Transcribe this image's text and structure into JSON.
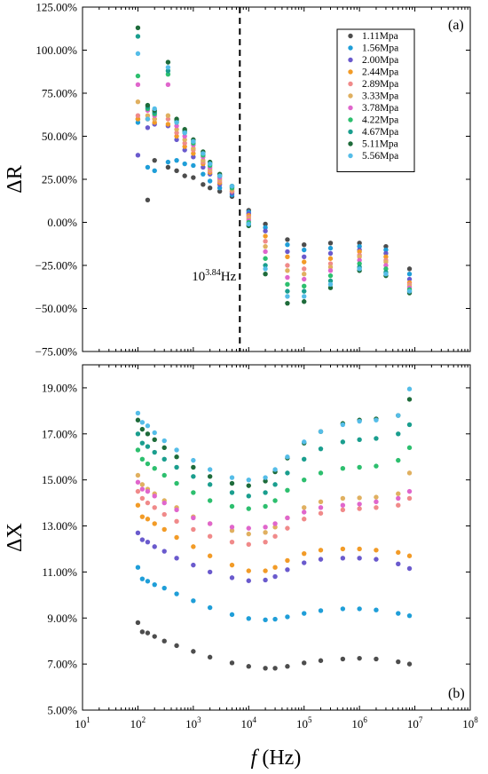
{
  "chart_data": [
    {
      "type": "scatter",
      "panel_label": "(a)",
      "ylabel": "ΔR",
      "xscale": "log",
      "xlim": [
        10,
        100000000
      ],
      "ylim": [
        -75,
        125
      ],
      "yticks": [
        "−75.00%",
        "−50.00%",
        "−25.00%",
        "0.00%",
        "25.00%",
        "50.00%",
        "75.00%",
        "100.00%",
        "125.00%"
      ],
      "ytick_values": [
        -75,
        -50,
        -25,
        0,
        25,
        50,
        75,
        100,
        125
      ],
      "vline_x_log10": 3.84,
      "annotation": {
        "base": "10",
        "exp": "3.84",
        "unit": "Hz"
      },
      "legend_position": "top-right",
      "series": [
        {
          "name": "1.11Mpa",
          "color": "#4d4d4d",
          "x": [
            100,
            150,
            200,
            350,
            500,
            700,
            1000,
            1500,
            2000,
            3000,
            5000,
            10000,
            20000,
            50000,
            100000,
            300000,
            1000000,
            3000000,
            8000000
          ],
          "y": [
            60,
            13,
            36,
            32,
            30,
            27,
            26,
            22,
            20,
            18,
            15,
            7,
            -1,
            -10,
            -13,
            -12,
            -12,
            -14,
            -27
          ]
        },
        {
          "name": "1.56Mpa",
          "color": "#1f9ed8",
          "x": [
            100,
            150,
            200,
            350,
            500,
            700,
            1000,
            1500,
            2000,
            3000,
            5000,
            10000,
            20000,
            50000,
            100000,
            300000,
            1000000,
            3000000,
            8000000
          ],
          "y": [
            58,
            32,
            30,
            35,
            36,
            34,
            33,
            28,
            24,
            20,
            16,
            6,
            -3,
            -13,
            -16,
            -15,
            -14,
            -16,
            -30
          ]
        },
        {
          "name": "2.00Mpa",
          "color": "#6a5acd",
          "x": [
            100,
            150,
            200,
            350,
            500,
            700,
            1000,
            1500,
            2000,
            3000,
            5000,
            10000,
            20000,
            50000,
            100000,
            300000,
            1000000,
            3000000,
            8000000
          ],
          "y": [
            39,
            55,
            57,
            56,
            48,
            42,
            38,
            32,
            28,
            22,
            17,
            5,
            -5,
            -17,
            -20,
            -18,
            -16,
            -18,
            -33
          ]
        },
        {
          "name": "2.44Mpa",
          "color": "#f29b27",
          "x": [
            100,
            150,
            200,
            350,
            500,
            700,
            1000,
            1500,
            2000,
            3000,
            5000,
            10000,
            20000,
            50000,
            100000,
            300000,
            1000000,
            3000000,
            8000000
          ],
          "y": [
            60,
            60,
            58,
            57,
            50,
            44,
            40,
            34,
            29,
            23,
            18,
            4,
            -8,
            -20,
            -23,
            -21,
            -17,
            -20,
            -35
          ]
        },
        {
          "name": "2.89Mpa",
          "color": "#f08a8a",
          "x": [
            100,
            150,
            200,
            350,
            500,
            700,
            1000,
            1500,
            2000,
            3000,
            5000,
            10000,
            20000,
            50000,
            100000,
            300000,
            1000000,
            3000000,
            8000000
          ],
          "y": [
            62,
            60,
            60,
            60,
            52,
            46,
            42,
            35,
            30,
            24,
            18,
            3,
            -11,
            -25,
            -27,
            -24,
            -19,
            -22,
            -36
          ]
        },
        {
          "name": "3.33Mpa",
          "color": "#e0b060",
          "x": [
            100,
            150,
            200,
            350,
            500,
            700,
            1000,
            1500,
            2000,
            3000,
            5000,
            10000,
            20000,
            50000,
            100000,
            300000,
            1000000,
            3000000,
            8000000
          ],
          "y": [
            70,
            62,
            60,
            62,
            54,
            48,
            43,
            36,
            31,
            25,
            19,
            2,
            -14,
            -28,
            -30,
            -26,
            -20,
            -23,
            -37
          ]
        },
        {
          "name": "3.78Mpa",
          "color": "#e066cc",
          "x": [
            100,
            150,
            200,
            350,
            500,
            700,
            1000,
            1500,
            2000,
            3000,
            5000,
            10000,
            20000,
            50000,
            100000,
            300000,
            1000000,
            3000000,
            8000000
          ],
          "y": [
            80,
            65,
            62,
            80,
            56,
            50,
            45,
            38,
            32,
            26,
            20,
            1,
            -17,
            -32,
            -33,
            -28,
            -22,
            -25,
            -38
          ]
        },
        {
          "name": "4.22Mpa",
          "color": "#2dbf6e",
          "x": [
            100,
            150,
            200,
            350,
            500,
            700,
            1000,
            1500,
            2000,
            3000,
            5000,
            10000,
            20000,
            50000,
            100000,
            300000,
            1000000,
            3000000,
            8000000
          ],
          "y": [
            85,
            66,
            63,
            86,
            58,
            52,
            46,
            39,
            33,
            27,
            20,
            0,
            -21,
            -36,
            -37,
            -31,
            -24,
            -27,
            -39
          ]
        },
        {
          "name": "4.67Mpa",
          "color": "#1a9e8e",
          "x": [
            100,
            150,
            200,
            350,
            500,
            700,
            1000,
            1500,
            2000,
            3000,
            5000,
            10000,
            20000,
            50000,
            100000,
            300000,
            1000000,
            3000000,
            8000000
          ],
          "y": [
            108,
            67,
            64,
            88,
            59,
            53,
            47,
            40,
            34,
            27,
            21,
            -1,
            -25,
            -40,
            -40,
            -34,
            -26,
            -29,
            -40
          ]
        },
        {
          "name": "5.11Mpa",
          "color": "#1e6b3a",
          "x": [
            100,
            150,
            200,
            350,
            500,
            700,
            1000,
            1500,
            2000,
            3000,
            5000,
            10000,
            20000,
            50000,
            100000,
            300000,
            1000000,
            3000000,
            8000000
          ],
          "y": [
            113,
            68,
            65,
            93,
            60,
            54,
            48,
            41,
            35,
            28,
            21,
            -2,
            -30,
            -47,
            -46,
            -38,
            -28,
            -31,
            -41
          ]
        },
        {
          "name": "5.56Mpa",
          "color": "#55bde8",
          "x": [
            100,
            150,
            200,
            350,
            500,
            700,
            1000,
            1500,
            2000,
            3000,
            5000,
            10000,
            20000,
            50000,
            100000,
            300000,
            1000000,
            3000000,
            8000000
          ],
          "y": [
            98,
            60,
            66,
            90,
            58,
            52,
            47,
            40,
            34,
            27,
            21,
            -1,
            -27,
            -43,
            -43,
            -36,
            -27,
            -30,
            -40
          ]
        }
      ]
    },
    {
      "type": "scatter",
      "panel_label": "(b)",
      "ylabel": "ΔX",
      "xlabel_italic": "f",
      "xlabel_unit": " (Hz)",
      "xscale": "log",
      "xlim": [
        10,
        100000000
      ],
      "xticks_exp": [
        "1",
        "2",
        "3",
        "4",
        "5",
        "6",
        "7",
        "8"
      ],
      "xtick_base": "10",
      "ylim": [
        5,
        20
      ],
      "yticks": [
        "5.00%",
        "7.00%",
        "9.00%",
        "11.00%",
        "13.00%",
        "15.00%",
        "17.00%",
        "19.00%"
      ],
      "ytick_values": [
        5,
        7,
        9,
        11,
        13,
        15,
        17,
        19
      ],
      "series": [
        {
          "name": "1.11Mpa",
          "color": "#4d4d4d",
          "x": [
            100,
            120,
            150,
            200,
            300,
            500,
            1000,
            2000,
            5000,
            10000,
            20000,
            30000,
            50000,
            100000,
            200000,
            500000,
            1000000,
            2000000,
            5000000,
            8000000
          ],
          "y": [
            8.8,
            8.4,
            8.35,
            8.2,
            8.0,
            7.8,
            7.55,
            7.3,
            7.05,
            6.9,
            6.82,
            6.82,
            6.9,
            7.05,
            7.15,
            7.22,
            7.25,
            7.22,
            7.1,
            7.0
          ]
        },
        {
          "name": "1.56Mpa",
          "color": "#1f9ed8",
          "x": [
            100,
            120,
            150,
            200,
            300,
            500,
            1000,
            2000,
            5000,
            10000,
            20000,
            30000,
            50000,
            100000,
            200000,
            500000,
            1000000,
            2000000,
            5000000,
            8000000
          ],
          "y": [
            11.2,
            10.7,
            10.6,
            10.45,
            10.3,
            10.05,
            9.75,
            9.45,
            9.15,
            8.98,
            8.92,
            8.95,
            9.05,
            9.2,
            9.32,
            9.4,
            9.4,
            9.35,
            9.2,
            9.1
          ]
        },
        {
          "name": "2.00Mpa",
          "color": "#6a5acd",
          "x": [
            100,
            120,
            150,
            200,
            300,
            500,
            1000,
            2000,
            5000,
            10000,
            20000,
            30000,
            50000,
            100000,
            200000,
            500000,
            1000000,
            2000000,
            5000000,
            8000000
          ],
          "y": [
            12.7,
            12.4,
            12.3,
            12.1,
            11.9,
            11.6,
            11.3,
            11.0,
            10.75,
            10.62,
            10.65,
            10.8,
            11.1,
            11.4,
            11.55,
            11.6,
            11.6,
            11.55,
            11.35,
            11.15
          ]
        },
        {
          "name": "2.44Mpa",
          "color": "#f29b27",
          "x": [
            100,
            120,
            150,
            200,
            300,
            500,
            1000,
            2000,
            5000,
            10000,
            20000,
            30000,
            50000,
            100000,
            200000,
            500000,
            1000000,
            2000000,
            5000000,
            8000000
          ],
          "y": [
            13.9,
            13.4,
            13.3,
            13.1,
            12.85,
            12.5,
            12.1,
            11.7,
            11.3,
            11.05,
            11.05,
            11.2,
            11.5,
            11.8,
            11.95,
            12.0,
            12.0,
            11.95,
            11.85,
            11.7
          ]
        },
        {
          "name": "2.89Mpa",
          "color": "#f08a8a",
          "x": [
            100,
            120,
            150,
            200,
            300,
            500,
            1000,
            2000,
            5000,
            10000,
            20000,
            30000,
            50000,
            100000,
            200000,
            500000,
            1000000,
            2000000,
            5000000,
            8000000
          ],
          "y": [
            14.5,
            14.2,
            14.0,
            13.8,
            13.5,
            13.2,
            12.85,
            12.55,
            12.3,
            12.2,
            12.3,
            12.55,
            12.9,
            13.3,
            13.55,
            13.7,
            13.75,
            13.8,
            13.9,
            14.2
          ]
        },
        {
          "name": "3.33Mpa",
          "color": "#e0b060",
          "x": [
            100,
            120,
            150,
            200,
            300,
            500,
            1000,
            2000,
            5000,
            10000,
            20000,
            30000,
            50000,
            100000,
            200000,
            500000,
            1000000,
            2000000,
            5000000,
            8000000
          ],
          "y": [
            15.2,
            14.8,
            14.6,
            14.4,
            14.1,
            13.8,
            13.4,
            13.1,
            12.8,
            12.65,
            12.72,
            12.95,
            13.35,
            13.8,
            14.05,
            14.2,
            14.22,
            14.25,
            14.4,
            15.3
          ]
        },
        {
          "name": "3.78Mpa",
          "color": "#e066cc",
          "x": [
            100,
            120,
            150,
            200,
            300,
            500,
            1000,
            2000,
            5000,
            10000,
            20000,
            30000,
            50000,
            100000,
            200000,
            500000,
            1000000,
            2000000,
            5000000,
            8000000
          ],
          "y": [
            14.9,
            14.6,
            14.5,
            14.3,
            14.0,
            13.7,
            13.35,
            13.1,
            12.95,
            12.9,
            12.95,
            13.1,
            13.35,
            13.6,
            13.8,
            13.9,
            13.95,
            14.05,
            14.2,
            14.5
          ]
        },
        {
          "name": "4.22Mpa",
          "color": "#2dbf6e",
          "x": [
            100,
            120,
            150,
            200,
            300,
            500,
            1000,
            2000,
            5000,
            10000,
            20000,
            30000,
            50000,
            100000,
            200000,
            500000,
            1000000,
            2000000,
            5000000,
            8000000
          ],
          "y": [
            16.3,
            15.9,
            15.7,
            15.5,
            15.2,
            14.85,
            14.45,
            14.1,
            13.85,
            13.75,
            13.85,
            14.1,
            14.55,
            15.0,
            15.3,
            15.5,
            15.55,
            15.6,
            15.85,
            16.4
          ]
        },
        {
          "name": "4.67Mpa",
          "color": "#1a9e8e",
          "x": [
            100,
            120,
            150,
            200,
            300,
            500,
            1000,
            2000,
            5000,
            10000,
            20000,
            30000,
            50000,
            100000,
            200000,
            500000,
            1000000,
            2000000,
            5000000,
            8000000
          ],
          "y": [
            17.0,
            16.6,
            16.45,
            16.2,
            15.9,
            15.55,
            15.15,
            14.8,
            14.45,
            14.3,
            14.45,
            14.8,
            15.3,
            15.9,
            16.35,
            16.65,
            16.75,
            16.8,
            17.0,
            17.4
          ]
        },
        {
          "name": "5.11Mpa",
          "color": "#1e6b3a",
          "x": [
            100,
            120,
            150,
            200,
            300,
            500,
            1000,
            2000,
            5000,
            10000,
            20000,
            30000,
            50000,
            100000,
            200000,
            500000,
            1000000,
            2000000,
            5000000,
            8000000
          ],
          "y": [
            17.6,
            17.2,
            17.0,
            16.75,
            16.4,
            16.0,
            15.55,
            15.15,
            14.85,
            14.75,
            14.95,
            15.35,
            15.95,
            16.6,
            17.1,
            17.45,
            17.6,
            17.65,
            17.8,
            18.5
          ]
        },
        {
          "name": "5.56Mpa",
          "color": "#55bde8",
          "x": [
            100,
            120,
            150,
            200,
            300,
            500,
            1000,
            2000,
            5000,
            10000,
            20000,
            30000,
            50000,
            100000,
            200000,
            500000,
            1000000,
            2000000,
            5000000,
            8000000
          ],
          "y": [
            17.9,
            17.5,
            17.35,
            17.05,
            16.7,
            16.3,
            15.85,
            15.45,
            15.1,
            15.0,
            15.1,
            15.45,
            16.0,
            16.65,
            17.1,
            17.4,
            17.55,
            17.6,
            17.8,
            18.95
          ]
        }
      ]
    }
  ]
}
